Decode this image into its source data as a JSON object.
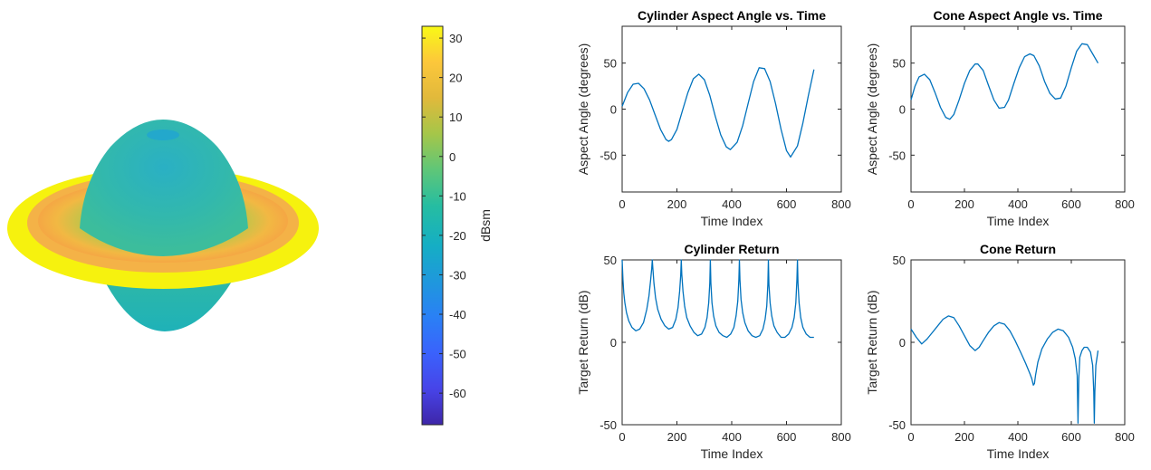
{
  "colorbar": {
    "label": "dBsm",
    "ticks": [
      30,
      20,
      10,
      0,
      -10,
      -20,
      -30,
      -40,
      -50,
      -60
    ],
    "range": [
      -68,
      33
    ],
    "colormap": [
      "#3e26a8",
      "#4744e8",
      "#3a62fc",
      "#2a80f5",
      "#1f98dc",
      "#15aec4",
      "#26bda1",
      "#5fc678",
      "#a5c649",
      "#e1b93b",
      "#fcc73b",
      "#f9f916"
    ]
  },
  "chart_data": [
    {
      "type": "line",
      "title": "Cylinder Aspect Angle vs. Time",
      "xlabel": "Time Index",
      "ylabel": "Aspect Angle (degrees)",
      "xlim": [
        0,
        800
      ],
      "ylim": [
        -90,
        90
      ],
      "xticks": [
        0,
        200,
        400,
        600,
        800
      ],
      "yticks": [
        -50,
        0,
        50
      ],
      "color": "#0072bd",
      "series": [
        {
          "x": [
            0,
            20,
            40,
            60,
            80,
            100,
            120,
            140,
            160,
            170,
            180,
            200,
            220,
            240,
            260,
            280,
            300,
            320,
            340,
            360,
            380,
            395,
            420,
            440,
            460,
            480,
            500,
            520,
            540,
            560,
            580,
            600,
            615,
            640,
            660,
            680,
            700
          ],
          "y": [
            3,
            18,
            27,
            28,
            22,
            10,
            -6,
            -22,
            -33,
            -35,
            -33,
            -22,
            -2,
            18,
            33,
            38,
            32,
            15,
            -8,
            -28,
            -41,
            -44,
            -36,
            -18,
            6,
            30,
            45,
            44,
            30,
            6,
            -22,
            -45,
            -52,
            -40,
            -15,
            15,
            43
          ]
        }
      ]
    },
    {
      "type": "line",
      "title": "Cone Aspect Angle vs. Time",
      "xlabel": "Time Index",
      "ylabel": "Aspect Angle (degrees)",
      "xlim": [
        0,
        800
      ],
      "ylim": [
        -90,
        90
      ],
      "xticks": [
        0,
        200,
        400,
        600,
        800
      ],
      "yticks": [
        -50,
        0,
        50
      ],
      "color": "#0072bd",
      "series": [
        {
          "x": [
            0,
            15,
            30,
            50,
            70,
            90,
            110,
            130,
            145,
            160,
            180,
            200,
            220,
            240,
            250,
            270,
            290,
            310,
            330,
            350,
            365,
            385,
            405,
            425,
            445,
            460,
            480,
            500,
            520,
            540,
            560,
            580,
            600,
            620,
            640,
            660,
            680,
            700
          ],
          "y": [
            10,
            25,
            35,
            38,
            32,
            18,
            2,
            -9,
            -11,
            -6,
            10,
            28,
            42,
            49,
            49,
            42,
            26,
            10,
            1,
            2,
            10,
            28,
            45,
            57,
            60,
            58,
            47,
            30,
            17,
            11,
            12,
            25,
            45,
            63,
            71,
            70,
            60,
            50
          ]
        }
      ]
    },
    {
      "type": "line",
      "title": "Cylinder Return",
      "xlabel": "Time Index",
      "ylabel": "Target Return (dB)",
      "xlim": [
        0,
        800
      ],
      "ylim": [
        -50,
        50
      ],
      "xticks": [
        0,
        200,
        400,
        600,
        800
      ],
      "yticks": [
        -50,
        0,
        50
      ],
      "color": "#0072bd",
      "series": [
        {
          "x": [
            0,
            3,
            6,
            10,
            16,
            24,
            36,
            50,
            64,
            78,
            90,
            98,
            104,
            108,
            110,
            112,
            116,
            122,
            130,
            142,
            156,
            170,
            184,
            196,
            204,
            210,
            214,
            216,
            218,
            222,
            228,
            236,
            248,
            262,
            276,
            290,
            302,
            310,
            316,
            320,
            322,
            324,
            328,
            334,
            342,
            354,
            368,
            382,
            396,
            408,
            416,
            422,
            426,
            428,
            430,
            434,
            440,
            448,
            460,
            474,
            488,
            502,
            514,
            522,
            528,
            532,
            534,
            536,
            540,
            546,
            554,
            566,
            580,
            594,
            608,
            620,
            628,
            634,
            638,
            640,
            642,
            646,
            652,
            660,
            672,
            686,
            700
          ],
          "y": [
            50,
            38,
            30,
            24,
            18,
            13,
            9,
            7,
            8,
            12,
            20,
            28,
            38,
            45,
            50,
            45,
            36,
            27,
            20,
            14,
            10,
            8,
            9,
            14,
            21,
            31,
            41,
            50,
            41,
            31,
            22,
            15,
            10,
            6,
            4,
            5,
            9,
            15,
            24,
            36,
            50,
            36,
            24,
            16,
            10,
            6,
            4,
            3,
            5,
            9,
            16,
            25,
            38,
            50,
            38,
            26,
            18,
            12,
            7,
            4,
            3,
            4,
            8,
            14,
            22,
            35,
            50,
            35,
            24,
            16,
            10,
            6,
            3,
            3,
            5,
            9,
            15,
            24,
            38,
            50,
            36,
            24,
            15,
            9,
            5,
            3,
            3
          ]
        }
      ]
    },
    {
      "type": "line",
      "title": "Cone Return",
      "xlabel": "Time Index",
      "ylabel": "Target Return (dB)",
      "xlim": [
        0,
        800
      ],
      "ylim": [
        -50,
        50
      ],
      "xticks": [
        0,
        200,
        400,
        600,
        800
      ],
      "yticks": [
        -50,
        0,
        50
      ],
      "color": "#0072bd",
      "series": [
        {
          "x": [
            0,
            20,
            40,
            60,
            80,
            100,
            120,
            140,
            160,
            180,
            200,
            220,
            240,
            255,
            270,
            290,
            310,
            330,
            350,
            370,
            390,
            410,
            430,
            445,
            452,
            458,
            462,
            466,
            475,
            490,
            510,
            530,
            550,
            570,
            590,
            605,
            615,
            622,
            625,
            628,
            632,
            640,
            648,
            660,
            672,
            680,
            684,
            686,
            688,
            692,
            700
          ],
          "y": [
            8,
            3,
            -1,
            2,
            6,
            10,
            14,
            16,
            15,
            10,
            4,
            -2,
            -5,
            -3,
            1,
            6,
            10,
            12,
            11,
            7,
            1,
            -6,
            -13,
            -19,
            -22,
            -26,
            -25,
            -20,
            -12,
            -4,
            2,
            6,
            8,
            7,
            3,
            -3,
            -10,
            -20,
            -49,
            -22,
            -9,
            -5,
            -3,
            -3,
            -6,
            -14,
            -30,
            -49,
            -30,
            -14,
            -5
          ]
        }
      ]
    }
  ]
}
